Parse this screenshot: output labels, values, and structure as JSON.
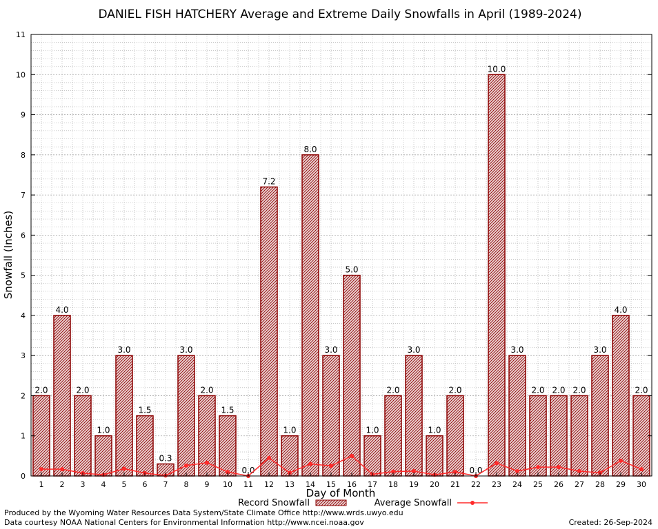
{
  "colors": {
    "bar_fill": "#d9b8b8",
    "bar_hatch": "#8b0000",
    "bar_edge": "#8b0000",
    "avg_line": "#ff2a2a",
    "grid": "#a8a8a8"
  },
  "chart_data": {
    "type": "bar",
    "title": "DANIEL FISH HATCHERY Average and Extreme Daily Snowfalls in April (1989-2024)",
    "xlabel": "Day of Month",
    "ylabel": "Snowfall (Inches)",
    "ylim": [
      0,
      11
    ],
    "yticks": [
      "0",
      "1",
      "2",
      "3",
      "4",
      "5",
      "6",
      "7",
      "8",
      "9",
      "10",
      "11"
    ],
    "grid": true,
    "legend_placement": "bottom",
    "categories": [
      "1",
      "2",
      "3",
      "4",
      "5",
      "6",
      "7",
      "8",
      "9",
      "10",
      "11",
      "12",
      "13",
      "14",
      "15",
      "16",
      "17",
      "18",
      "19",
      "20",
      "21",
      "22",
      "23",
      "24",
      "25",
      "26",
      "27",
      "28",
      "29",
      "30"
    ],
    "series": [
      {
        "name": "Record Snowfall",
        "type": "bar",
        "values": [
          2.0,
          4.0,
          2.0,
          1.0,
          3.0,
          1.5,
          0.3,
          3.0,
          2.0,
          1.5,
          0.0,
          7.2,
          1.0,
          8.0,
          3.0,
          5.0,
          1.0,
          2.0,
          3.0,
          1.0,
          2.0,
          0.0,
          10.0,
          3.0,
          2.0,
          2.0,
          2.0,
          3.0,
          4.0,
          2.0
        ],
        "labels": [
          "2.0",
          "4.0",
          "2.0",
          "1.0",
          "3.0",
          "1.5",
          "0.3",
          "3.0",
          "2.0",
          "1.5",
          "0.0",
          "7.2",
          "1.0",
          "8.0",
          "3.0",
          "5.0",
          "1.0",
          "2.0",
          "3.0",
          "1.0",
          "2.0",
          "0.0",
          "10.0",
          "3.0",
          "2.0",
          "2.0",
          "2.0",
          "3.0",
          "4.0",
          "2.0"
        ]
      },
      {
        "name": "Average Snowfall",
        "type": "line",
        "values": [
          0.17,
          0.17,
          0.07,
          0.03,
          0.18,
          0.07,
          0.01,
          0.26,
          0.33,
          0.1,
          0.0,
          0.45,
          0.08,
          0.3,
          0.25,
          0.5,
          0.04,
          0.11,
          0.12,
          0.03,
          0.1,
          0.0,
          0.32,
          0.12,
          0.22,
          0.22,
          0.12,
          0.08,
          0.38,
          0.17
        ]
      }
    ]
  },
  "footer": {
    "line1": "Produced by the Wyoming Water Resources Data System/State Climate Office http://www.wrds.uwyo.edu",
    "line2": "Data courtesy NOAA National Centers for Environmental Information http://www.ncei.noaa.gov",
    "created": "Created:  26-Sep-2024"
  }
}
